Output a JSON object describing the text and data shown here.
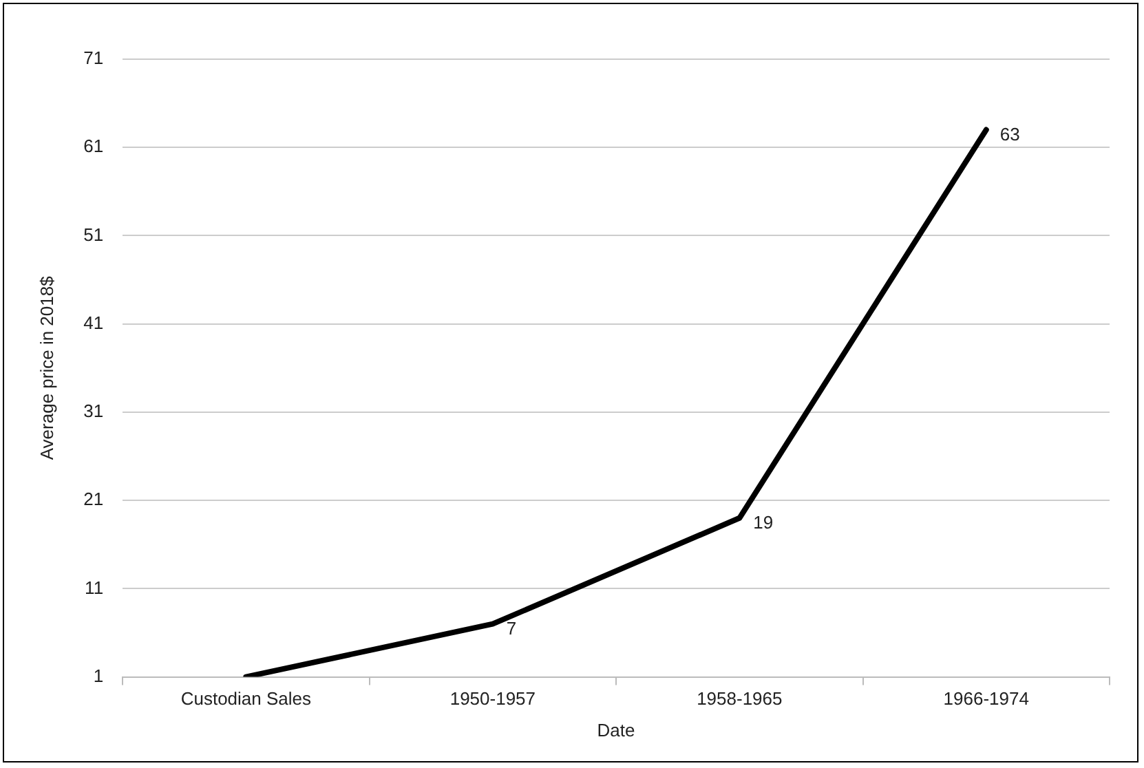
{
  "chart_data": {
    "type": "line",
    "xlabel": "Date",
    "ylabel": "Average price in 2018$",
    "categories": [
      "Custodian Sales",
      "1950-1957",
      "1958-1965",
      "1966-1974"
    ],
    "series": [
      {
        "color": "#000000",
        "values": [
          1,
          7,
          19,
          63
        ],
        "value_labels": [
          null,
          "7",
          "19",
          "63"
        ]
      }
    ],
    "ylim": [
      1,
      71
    ],
    "yticks": [
      1,
      11,
      21,
      31,
      41,
      51,
      61,
      71
    ],
    "grid": "y",
    "legend": false,
    "marker": "none",
    "line_style": "solid"
  }
}
